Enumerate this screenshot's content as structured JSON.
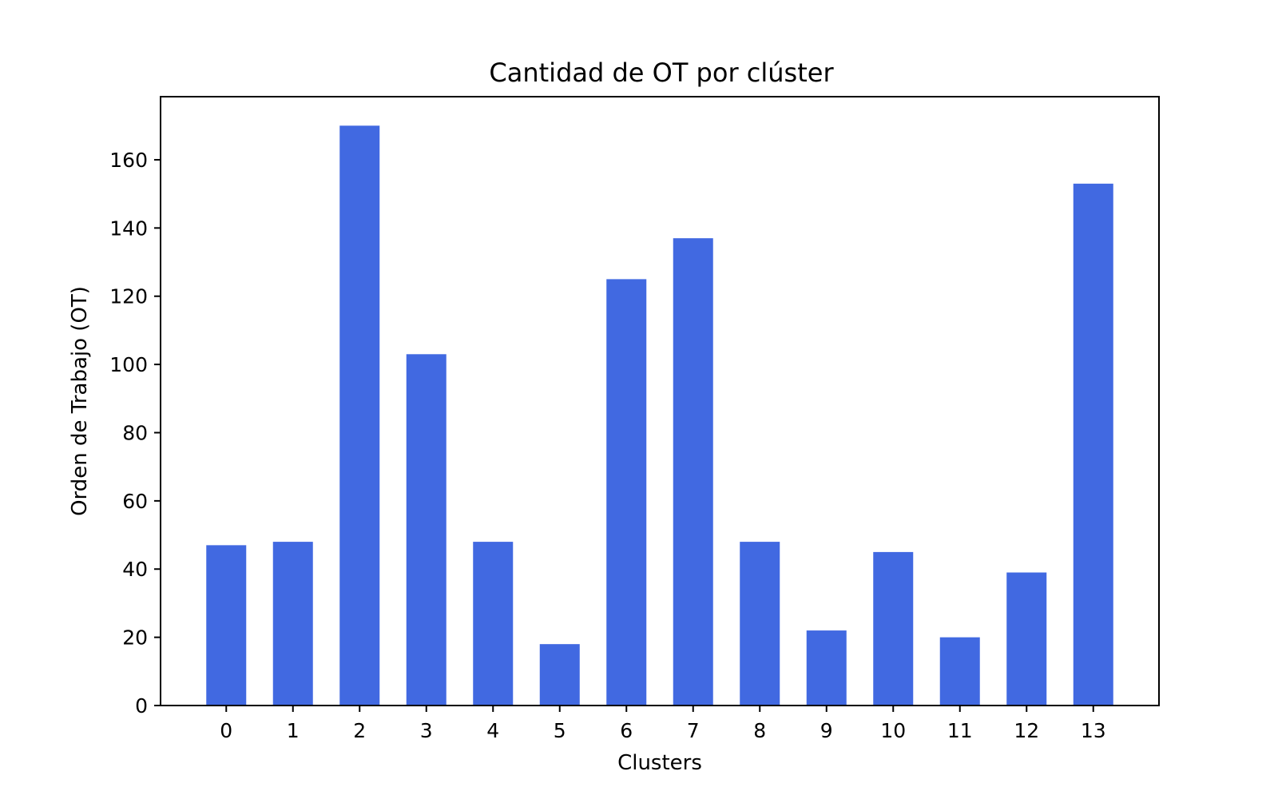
{
  "chart_data": {
    "type": "bar",
    "title": "Cantidad de OT por clúster",
    "xlabel": "Clusters",
    "ylabel": "Orden de Trabajo (OT)",
    "categories": [
      "0",
      "1",
      "2",
      "3",
      "4",
      "5",
      "6",
      "7",
      "8",
      "9",
      "10",
      "11",
      "12",
      "13"
    ],
    "values": [
      47,
      48,
      170,
      103,
      48,
      18,
      125,
      137,
      48,
      22,
      45,
      20,
      39,
      153
    ],
    "ylim": [
      0,
      178.5
    ],
    "yticks": [
      0,
      20,
      40,
      60,
      80,
      100,
      120,
      140,
      160
    ],
    "bar_color": "#4169e1",
    "grid": false,
    "legend": "none"
  }
}
